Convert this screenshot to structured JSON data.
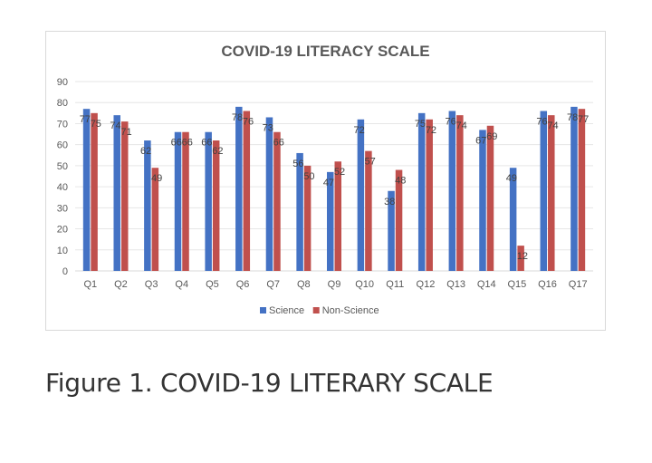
{
  "chart_data": {
    "type": "bar",
    "title": "COVID-19 LITERACY SCALE",
    "xlabel": "",
    "ylabel": "",
    "ylim": [
      0,
      90
    ],
    "yticks": [
      0,
      10,
      20,
      30,
      40,
      50,
      60,
      70,
      80,
      90
    ],
    "grid": true,
    "legend_position": "bottom",
    "categories": [
      "Q1",
      "Q2",
      "Q3",
      "Q4",
      "Q5",
      "Q6",
      "Q7",
      "Q8",
      "Q9",
      "Q10",
      "Q11",
      "Q12",
      "Q13",
      "Q14",
      "Q15",
      "Q16",
      "Q17"
    ],
    "series": [
      {
        "name": "Science",
        "color": "#4472c4",
        "values": [
          77,
          74,
          62,
          66,
          66,
          78,
          73,
          56,
          47,
          72,
          38,
          75,
          76,
          67,
          49,
          76,
          78
        ]
      },
      {
        "name": "Non-Science",
        "color": "#c0504d",
        "values": [
          75,
          71,
          49,
          66,
          62,
          76,
          66,
          50,
          52,
          57,
          48,
          72,
          74,
          69,
          12,
          74,
          77
        ]
      }
    ]
  },
  "caption": "Figure 1. COVID-19 LITERARY SCALE"
}
